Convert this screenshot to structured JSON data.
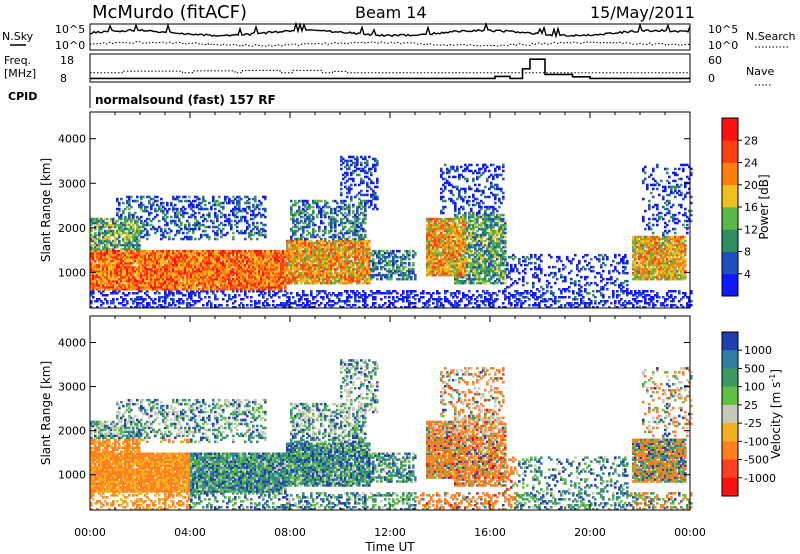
{
  "header": {
    "station": "McMurdo (fitACF)",
    "beam": "Beam 14",
    "date": "15/May/2011"
  },
  "mode_label": "normalsound (fast) 157 RF",
  "labels": {
    "nsky": "N.Sky",
    "freq_line1": "Freq.",
    "freq_line2": "[MHz]",
    "cpid": "CPID",
    "nsearch": "N.Search",
    "nave": "Nave"
  },
  "chart_data": [
    {
      "type": "line",
      "name": "noise-panel",
      "left_ticks": [
        "10^5",
        "10^0"
      ],
      "right_ticks": [
        "10^5",
        "10^0"
      ],
      "left_label": "N.Sky",
      "right_label": "N.Search"
    },
    {
      "type": "line",
      "name": "freq-nave-panel",
      "left_ticks": [
        "18",
        "8"
      ],
      "right_ticks": [
        "60",
        "0"
      ],
      "ylim_left": [
        8,
        18
      ],
      "ylim_right": [
        0,
        60
      ],
      "freq_steps": [
        {
          "t": 0,
          "v": 11
        },
        {
          "t": 1.3,
          "v": 11.7
        },
        {
          "t": 3.7,
          "v": 11
        },
        {
          "t": 4.1,
          "v": 11.8
        },
        {
          "t": 5.8,
          "v": 11
        },
        {
          "t": 6.1,
          "v": 12
        },
        {
          "t": 7.6,
          "v": 11
        },
        {
          "t": 8.1,
          "v": 12
        },
        {
          "t": 9.3,
          "v": 11
        },
        {
          "t": 9.7,
          "v": 11.6
        },
        {
          "t": 10.3,
          "v": 11
        },
        {
          "t": 17.6,
          "v": 11
        },
        {
          "t": 24,
          "v": 11
        }
      ],
      "nave_steps": [
        {
          "t": 0,
          "v": 4
        },
        {
          "t": 16.2,
          "v": 9
        },
        {
          "t": 16.8,
          "v": 4
        },
        {
          "t": 17.3,
          "v": 28
        },
        {
          "t": 17.6,
          "v": 52
        },
        {
          "t": 18.2,
          "v": 14
        },
        {
          "t": 19.3,
          "v": 8
        },
        {
          "t": 20,
          "v": 4
        },
        {
          "t": 24,
          "v": 4
        }
      ]
    },
    {
      "type": "heatmap",
      "name": "power-panel",
      "ylabel": "Slant Range [km]",
      "ylim": [
        200,
        4600
      ],
      "yticks": [
        "1000",
        "2000",
        "3000",
        "4000"
      ],
      "xlim": [
        0,
        24
      ],
      "colorbar_label": "Power [dB]",
      "colorbar_ticks": [
        "4",
        "8",
        "12",
        "16",
        "20",
        "24",
        "28"
      ],
      "colorbar_colors": [
        "#1018ff",
        "#2050c0",
        "#2f8f5f",
        "#58b848",
        "#f0c020",
        "#ff8010",
        "#ff4010",
        "#ff1010"
      ]
    },
    {
      "type": "heatmap",
      "name": "velocity-panel",
      "ylabel": "Slant Range [km]",
      "ylim": [
        200,
        4600
      ],
      "yticks": [
        "1000",
        "2000",
        "3000",
        "4000"
      ],
      "xlabel": "Time UT",
      "xlim": [
        0,
        24
      ],
      "xticks": [
        "00:00",
        "04:00",
        "08:00",
        "12:00",
        "16:00",
        "20:00",
        "00:00"
      ],
      "colorbar_label": "Velocity [m s",
      "colorbar_label_sup": "-1",
      "colorbar_label_end": "]",
      "colorbar_ticks": [
        "1000",
        "500",
        "100",
        "25",
        "-25",
        "-100",
        "-500",
        "-1000"
      ],
      "colorbar_colors": [
        "#2040b0",
        "#2f7fa0",
        "#3a9a60",
        "#60c040",
        "#c8c8b8",
        "#f0b020",
        "#ff8020",
        "#ff4020",
        "#ff1010"
      ]
    }
  ]
}
